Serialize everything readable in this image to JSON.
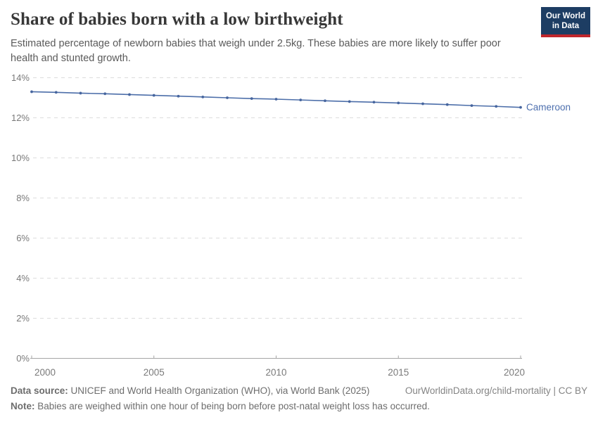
{
  "header": {
    "title": "Share of babies born with a low birthweight",
    "subtitle": "Estimated percentage of newborn babies that weigh under 2.5kg. These babies are more likely to suffer poor health and stunted growth.",
    "logo": {
      "line1": "Our World",
      "line2": "in Data",
      "bg_color": "#1d3d63",
      "accent_color": "#c0262c"
    }
  },
  "chart_data": {
    "type": "line",
    "title": "Share of babies born with a low birthweight",
    "xlabel": "",
    "ylabel": "",
    "ylim": [
      0,
      14
    ],
    "yticks": [
      0,
      2,
      4,
      6,
      8,
      10,
      12,
      14
    ],
    "ytick_suffix": "%",
    "xticks": [
      2000,
      2005,
      2010,
      2015,
      2020
    ],
    "grid": "horizontal dashed",
    "legend_position": "end-of-line label",
    "colors": {
      "line": "#4c6ea9",
      "marker": "#46659e",
      "entity_label": "#4d6fae",
      "gridline": "#dcdcdc",
      "axis": "#a5a5a5",
      "tick_label": "#7a7a7a"
    },
    "series": [
      {
        "name": "Cameroon",
        "x": [
          2000,
          2001,
          2002,
          2003,
          2004,
          2005,
          2006,
          2007,
          2008,
          2009,
          2010,
          2011,
          2012,
          2013,
          2014,
          2015,
          2016,
          2017,
          2018,
          2019,
          2020
        ],
        "values": [
          13.3,
          13.27,
          13.23,
          13.2,
          13.16,
          13.12,
          13.08,
          13.04,
          13.0,
          12.96,
          12.93,
          12.89,
          12.85,
          12.81,
          12.78,
          12.74,
          12.7,
          12.66,
          12.61,
          12.57,
          12.52
        ]
      }
    ]
  },
  "footer": {
    "source_label": "Data source:",
    "source_text": " UNICEF and World Health Organization (WHO), via World Bank (2025)",
    "link": "OurWorldinData.org/child-mortality | CC BY",
    "note_label": "Note:",
    "note_text": " Babies are weighed within one hour of being born before post-natal weight loss has occurred."
  }
}
